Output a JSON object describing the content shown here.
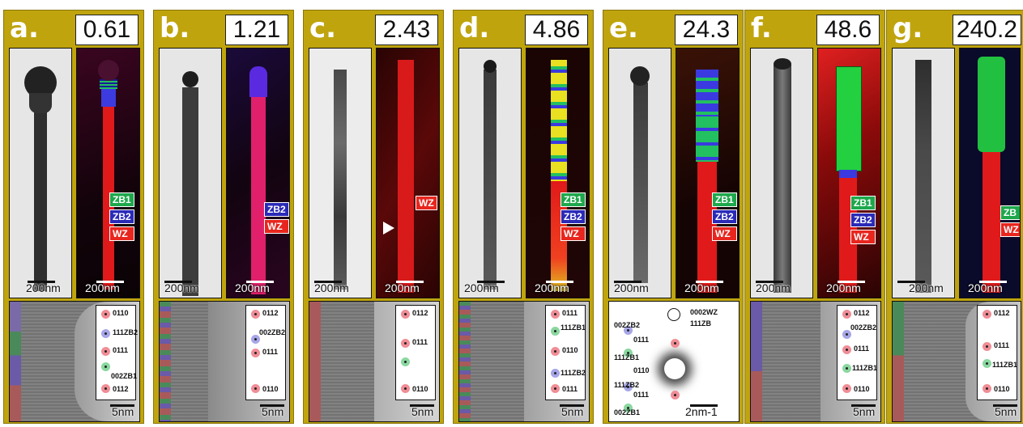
{
  "panels": [
    {
      "letter": "a.",
      "value": "0.61",
      "tem_scale": "200nm",
      "map_scale": "200nm",
      "legend": [
        "ZB1",
        "ZB2",
        "WZ"
      ],
      "hr_scale": "5nm",
      "inset": [
        "0110",
        "111ZB2",
        "0111",
        "002ZB1",
        "0112"
      ]
    },
    {
      "letter": "b.",
      "value": "1.21",
      "tem_scale": "200nm",
      "map_scale": "200nm",
      "legend": [
        "ZB2",
        "WZ"
      ],
      "hr_scale": "5nm",
      "inset": [
        "0112",
        "002ZB2",
        "0111",
        "0110"
      ]
    },
    {
      "letter": "c.",
      "value": "2.43",
      "tem_scale": "200nm",
      "map_scale": "200nm",
      "legend": [
        "WZ"
      ],
      "hr_scale": "5nm",
      "inset": [
        "0112",
        "0111",
        "0110"
      ]
    },
    {
      "letter": "d.",
      "value": "4.86",
      "tem_scale": "200nm",
      "map_scale": "200nm",
      "legend": [
        "ZB1",
        "ZB2",
        "WZ"
      ],
      "hr_scale": "5nm",
      "inset": [
        "0111",
        "111ZB1",
        "0110",
        "111ZB2",
        "0111"
      ]
    },
    {
      "letter": "e.",
      "value": "24.3",
      "tem_scale": "200nm",
      "map_scale": "200nm",
      "legend": [
        "ZB1",
        "ZB2",
        "WZ"
      ],
      "hr_scale": "2nm-1",
      "inset": [
        "0002WZ",
        "111ZB",
        "002ZB2",
        "0111",
        "111ZB1",
        "0110",
        "111ZB2",
        "0111",
        "002ZB1"
      ]
    },
    {
      "letter": "f.",
      "value": "48.6",
      "tem_scale": "200nm",
      "map_scale": "200nm",
      "legend": [
        "ZB1",
        "ZB2",
        "WZ"
      ],
      "hr_scale": "5nm",
      "inset": [
        "0112",
        "002ZB2",
        "0111",
        "111ZB1",
        "0110"
      ]
    },
    {
      "letter": "g.",
      "value": "240.2",
      "tem_scale": "200nm",
      "map_scale": "200nm",
      "legend": [
        "ZB",
        "WZ"
      ],
      "hr_scale": "5nm",
      "inset": [
        "0112",
        "0111",
        "111ZB1",
        "0110"
      ]
    }
  ],
  "colors": {
    "panel_bg": "#bfa40e",
    "zb1": "#1ea84c",
    "zb2": "#2a2ab8",
    "wz": "#e8261e"
  }
}
